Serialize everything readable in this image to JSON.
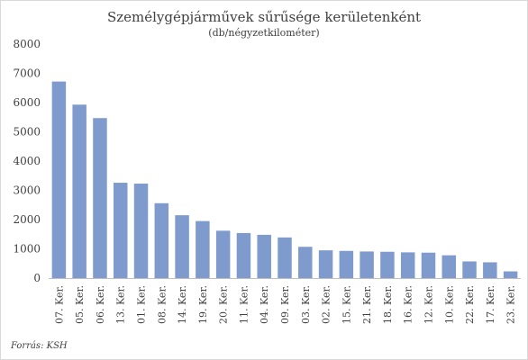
{
  "chart_data": {
    "type": "bar",
    "title": "Személygépjárművek sűrűsége kerületenként",
    "subtitle": "(db/négyzetkilométer)",
    "xlabel": "",
    "ylabel": "",
    "ylim": [
      0,
      8000
    ],
    "yticks": [
      0,
      1000,
      2000,
      3000,
      4000,
      5000,
      6000,
      7000,
      8000
    ],
    "grid": false,
    "legend": "none",
    "bar_color": "#7f9bcd",
    "categories": [
      "07. Ker.",
      "05. Ker.",
      "06. Ker.",
      "13. Ker.",
      "01. Ker.",
      "08. Ker.",
      "14. Ker.",
      "19. Ker.",
      "20. Ker.",
      "11. Ker.",
      "04. Ker.",
      "09. Ker.",
      "03. Ker.",
      "02. Ker.",
      "15. Ker.",
      "21. Ker.",
      "18. Ker.",
      "16. Ker.",
      "12. Ker.",
      "10. Ker.",
      "22. Ker.",
      "17. Ker.",
      "23. Ker."
    ],
    "values": [
      6720,
      5930,
      5470,
      3260,
      3230,
      2560,
      2150,
      1950,
      1620,
      1540,
      1480,
      1390,
      1070,
      950,
      930,
      910,
      900,
      880,
      870,
      780,
      570,
      540,
      230
    ],
    "source": "Forrás: KSH"
  }
}
